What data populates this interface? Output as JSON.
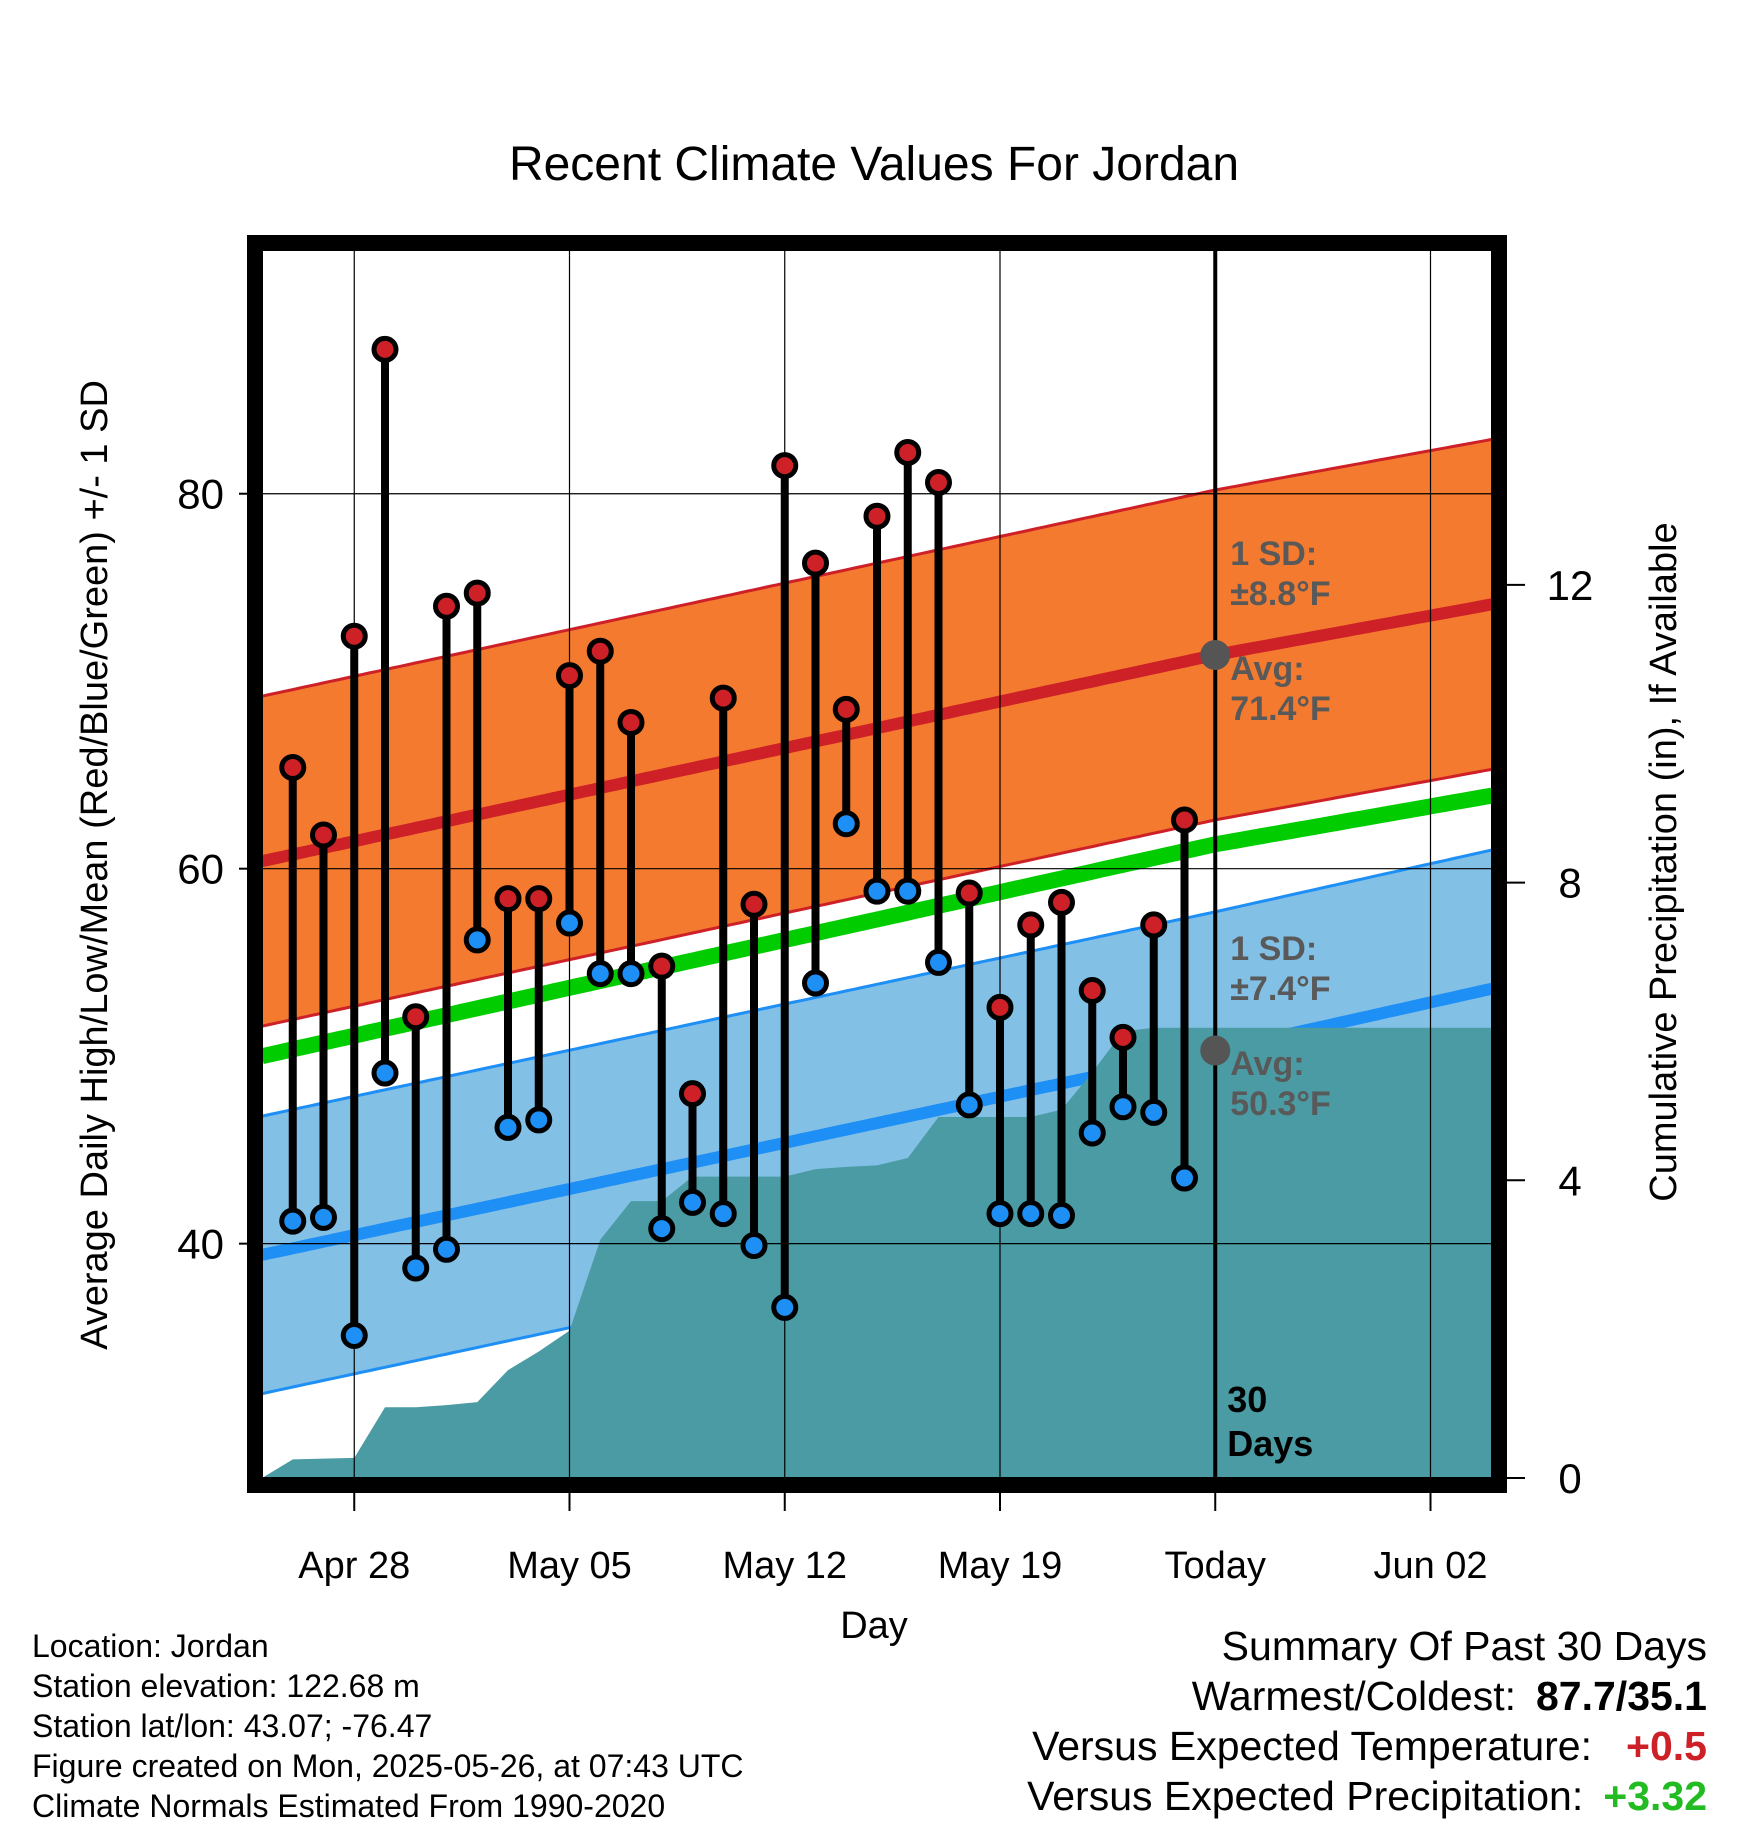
{
  "chart_data": {
    "type": "line",
    "title": "Recent Climate Values For Jordan",
    "xlabel": "Day",
    "ylabel": "Average Daily High/Low/Mean (Red/Blue/Green) +/- 1 SD",
    "y2label": "Cumulative Precipitation (in), If Available",
    "x_tick_labels": [
      "Apr 28",
      "May 05",
      "May 12",
      "May 19",
      "Today",
      "Jun 02"
    ],
    "x_tick_dates": [
      "2025-04-28",
      "2025-05-05",
      "2025-05-12",
      "2025-05-19",
      "2025-05-26",
      "2025-06-02"
    ],
    "xlim": [
      "2025-04-25",
      "2025-06-04"
    ],
    "ylim": [
      27.5,
      93
    ],
    "y_ticks": [
      40,
      60,
      80
    ],
    "y2lim": [
      0,
      16.5
    ],
    "y2_ticks": [
      0,
      4,
      8,
      12
    ],
    "grid": true,
    "today": "2025-05-26",
    "today_label": "30\nDays",
    "daily": {
      "dates": [
        "2025-04-26",
        "2025-04-27",
        "2025-04-28",
        "2025-04-29",
        "2025-04-30",
        "2025-05-01",
        "2025-05-02",
        "2025-05-03",
        "2025-05-04",
        "2025-05-05",
        "2025-05-06",
        "2025-05-07",
        "2025-05-08",
        "2025-05-09",
        "2025-05-10",
        "2025-05-11",
        "2025-05-12",
        "2025-05-13",
        "2025-05-14",
        "2025-05-15",
        "2025-05-16",
        "2025-05-17",
        "2025-05-18",
        "2025-05-19",
        "2025-05-20",
        "2025-05-21",
        "2025-05-22",
        "2025-05-23",
        "2025-05-24",
        "2025-05-25"
      ],
      "highs": [
        65.4,
        61.8,
        72.4,
        87.7,
        52.1,
        74.0,
        74.7,
        58.4,
        58.4,
        70.3,
        71.6,
        67.8,
        54.8,
        48.0,
        69.1,
        58.1,
        81.5,
        76.3,
        68.5,
        78.8,
        82.2,
        80.6,
        58.7,
        52.6,
        57.0,
        58.2,
        53.5,
        51.0,
        57.0,
        62.6
      ],
      "lows": [
        41.2,
        41.4,
        35.1,
        49.1,
        38.7,
        39.7,
        56.2,
        46.2,
        46.6,
        57.1,
        54.4,
        54.4,
        40.8,
        42.2,
        41.6,
        39.9,
        36.6,
        53.9,
        62.4,
        58.8,
        58.8,
        55.0,
        47.4,
        41.6,
        41.6,
        41.5,
        45.9,
        47.3,
        47.0,
        43.5
      ]
    },
    "normals": {
      "dates": [
        "2025-04-25",
        "2025-05-26",
        "2025-06-04"
      ],
      "avg_high": [
        60.4,
        71.4,
        74.1
      ],
      "avg_low": [
        39.4,
        50.3,
        53.6
      ],
      "avg_mean": [
        50.0,
        61.3,
        63.9
      ]
    },
    "sd_high": 8.8,
    "sd_low": 7.4,
    "precip": {
      "dates": [
        "2025-04-25",
        "2025-04-26",
        "2025-04-27",
        "2025-04-28",
        "2025-04-29",
        "2025-04-30",
        "2025-05-01",
        "2025-05-02",
        "2025-05-03",
        "2025-05-04",
        "2025-05-05",
        "2025-05-06",
        "2025-05-07",
        "2025-05-08",
        "2025-05-09",
        "2025-05-10",
        "2025-05-11",
        "2025-05-12",
        "2025-05-13",
        "2025-05-14",
        "2025-05-15",
        "2025-05-16",
        "2025-05-17",
        "2025-05-18",
        "2025-05-19",
        "2025-05-20",
        "2025-05-21",
        "2025-05-22",
        "2025-05-23",
        "2025-05-24",
        "2025-05-25",
        "2025-05-26",
        "2025-06-04"
      ],
      "cumulative": [
        0.0,
        0.25,
        0.26,
        0.27,
        0.95,
        0.95,
        0.98,
        1.02,
        1.45,
        1.7,
        1.98,
        3.2,
        3.72,
        3.72,
        4.05,
        4.05,
        4.05,
        4.05,
        4.15,
        4.18,
        4.2,
        4.3,
        4.85,
        4.85,
        4.85,
        4.85,
        4.95,
        5.45,
        6.0,
        6.05,
        6.05,
        6.05,
        6.05
      ]
    },
    "annotations": {
      "high_sd": "1 SD:\n±8.8°F",
      "high_avg": "Avg:\n71.4°F",
      "low_sd": "1 SD:\n±7.4°F",
      "low_avg": "Avg:\n50.3°F"
    },
    "colors": {
      "high_band": "#f47a30",
      "high_line": "#cd2027",
      "low_band": "#83c0e6",
      "low_line": "#1e8ff5",
      "mean_line": "#00cc00",
      "precip": "#4a9ba3",
      "high_dot": "#cd2027",
      "low_dot": "#1e8ff5",
      "annotation": "#595959"
    }
  },
  "footer": {
    "location": "Location: Jordan",
    "elevation": "Station elevation: 122.68 m",
    "latlon": "Station lat/lon: 43.07; -76.47",
    "created": "Figure created on Mon, 2025-05-26, at 07:43 UTC",
    "normals": "Climate Normals Estimated From 1990-2020"
  },
  "summary": {
    "title": "Summary Of Past 30 Days",
    "warmest_label": "Warmest/Coldest:",
    "warmest_value": "87.7/35.1",
    "temp_label": "Versus Expected Temperature:",
    "temp_value": "+0.5",
    "temp_color": "#cd2027",
    "precip_label": "Versus Expected Precipitation:",
    "precip_value": "+3.32",
    "precip_color": "#22bb22"
  }
}
